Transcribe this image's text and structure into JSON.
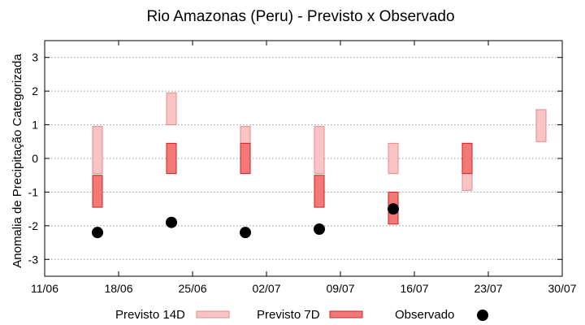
{
  "chart_data": {
    "type": "range-bar",
    "title": "Rio Amazonas (Peru) - Previsto x Observado",
    "ylabel": "Anomalia de Precipitação Categorizada",
    "xlabel": "",
    "ylim": [
      -3.5,
      3.5
    ],
    "yticks": [
      -3,
      -2,
      -1,
      0,
      1,
      2,
      3
    ],
    "xlim": [
      "2025-06-11",
      "2025-07-30"
    ],
    "xtick_labels": [
      "11/06",
      "18/06",
      "25/06",
      "02/07",
      "09/07",
      "16/07",
      "23/07",
      "30/07"
    ],
    "grid": "horizontal dotted",
    "colors": {
      "previsto_14d_fill": "#f8c4c4",
      "previsto_14d_stroke": "#e88888",
      "previsto_7d_fill": "#f47878",
      "previsto_7d_stroke": "#cc2222",
      "observado": "#000000"
    },
    "legend": [
      {
        "key": "previsto_14d",
        "label": "Previsto 14D"
      },
      {
        "key": "previsto_7d",
        "label": "Previsto 7D"
      },
      {
        "key": "observado",
        "label": "Observado"
      }
    ],
    "series": [
      {
        "name": "Previsto 14D",
        "key": "previsto_14d",
        "points": [
          {
            "x": "2025-06-16",
            "low": -0.45,
            "high": 0.95
          },
          {
            "x": "2025-06-23",
            "low": 1.0,
            "high": 1.95
          },
          {
            "x": "2025-06-30",
            "low": -0.45,
            "high": 0.95
          },
          {
            "x": "2025-07-07",
            "low": -0.45,
            "high": 0.95
          },
          {
            "x": "2025-07-14",
            "low": -0.45,
            "high": 0.45
          },
          {
            "x": "2025-07-21",
            "low": -0.95,
            "high": 0.45
          },
          {
            "x": "2025-07-28",
            "low": 0.5,
            "high": 1.45
          }
        ]
      },
      {
        "name": "Previsto 7D",
        "key": "previsto_7d",
        "points": [
          {
            "x": "2025-06-16",
            "low": -1.45,
            "high": -0.5
          },
          {
            "x": "2025-06-23",
            "low": -0.45,
            "high": 0.45
          },
          {
            "x": "2025-06-30",
            "low": -0.45,
            "high": 0.45
          },
          {
            "x": "2025-07-07",
            "low": -1.45,
            "high": -0.5
          },
          {
            "x": "2025-07-14",
            "low": -1.95,
            "high": -1.0
          },
          {
            "x": "2025-07-21",
            "low": -0.45,
            "high": 0.45
          }
        ]
      },
      {
        "name": "Observado",
        "key": "observado",
        "points": [
          {
            "x": "2025-06-16",
            "y": -2.2
          },
          {
            "x": "2025-06-23",
            "y": -1.9
          },
          {
            "x": "2025-06-30",
            "y": -2.2
          },
          {
            "x": "2025-07-07",
            "y": -2.1
          },
          {
            "x": "2025-07-14",
            "y": -1.5
          }
        ]
      }
    ]
  }
}
